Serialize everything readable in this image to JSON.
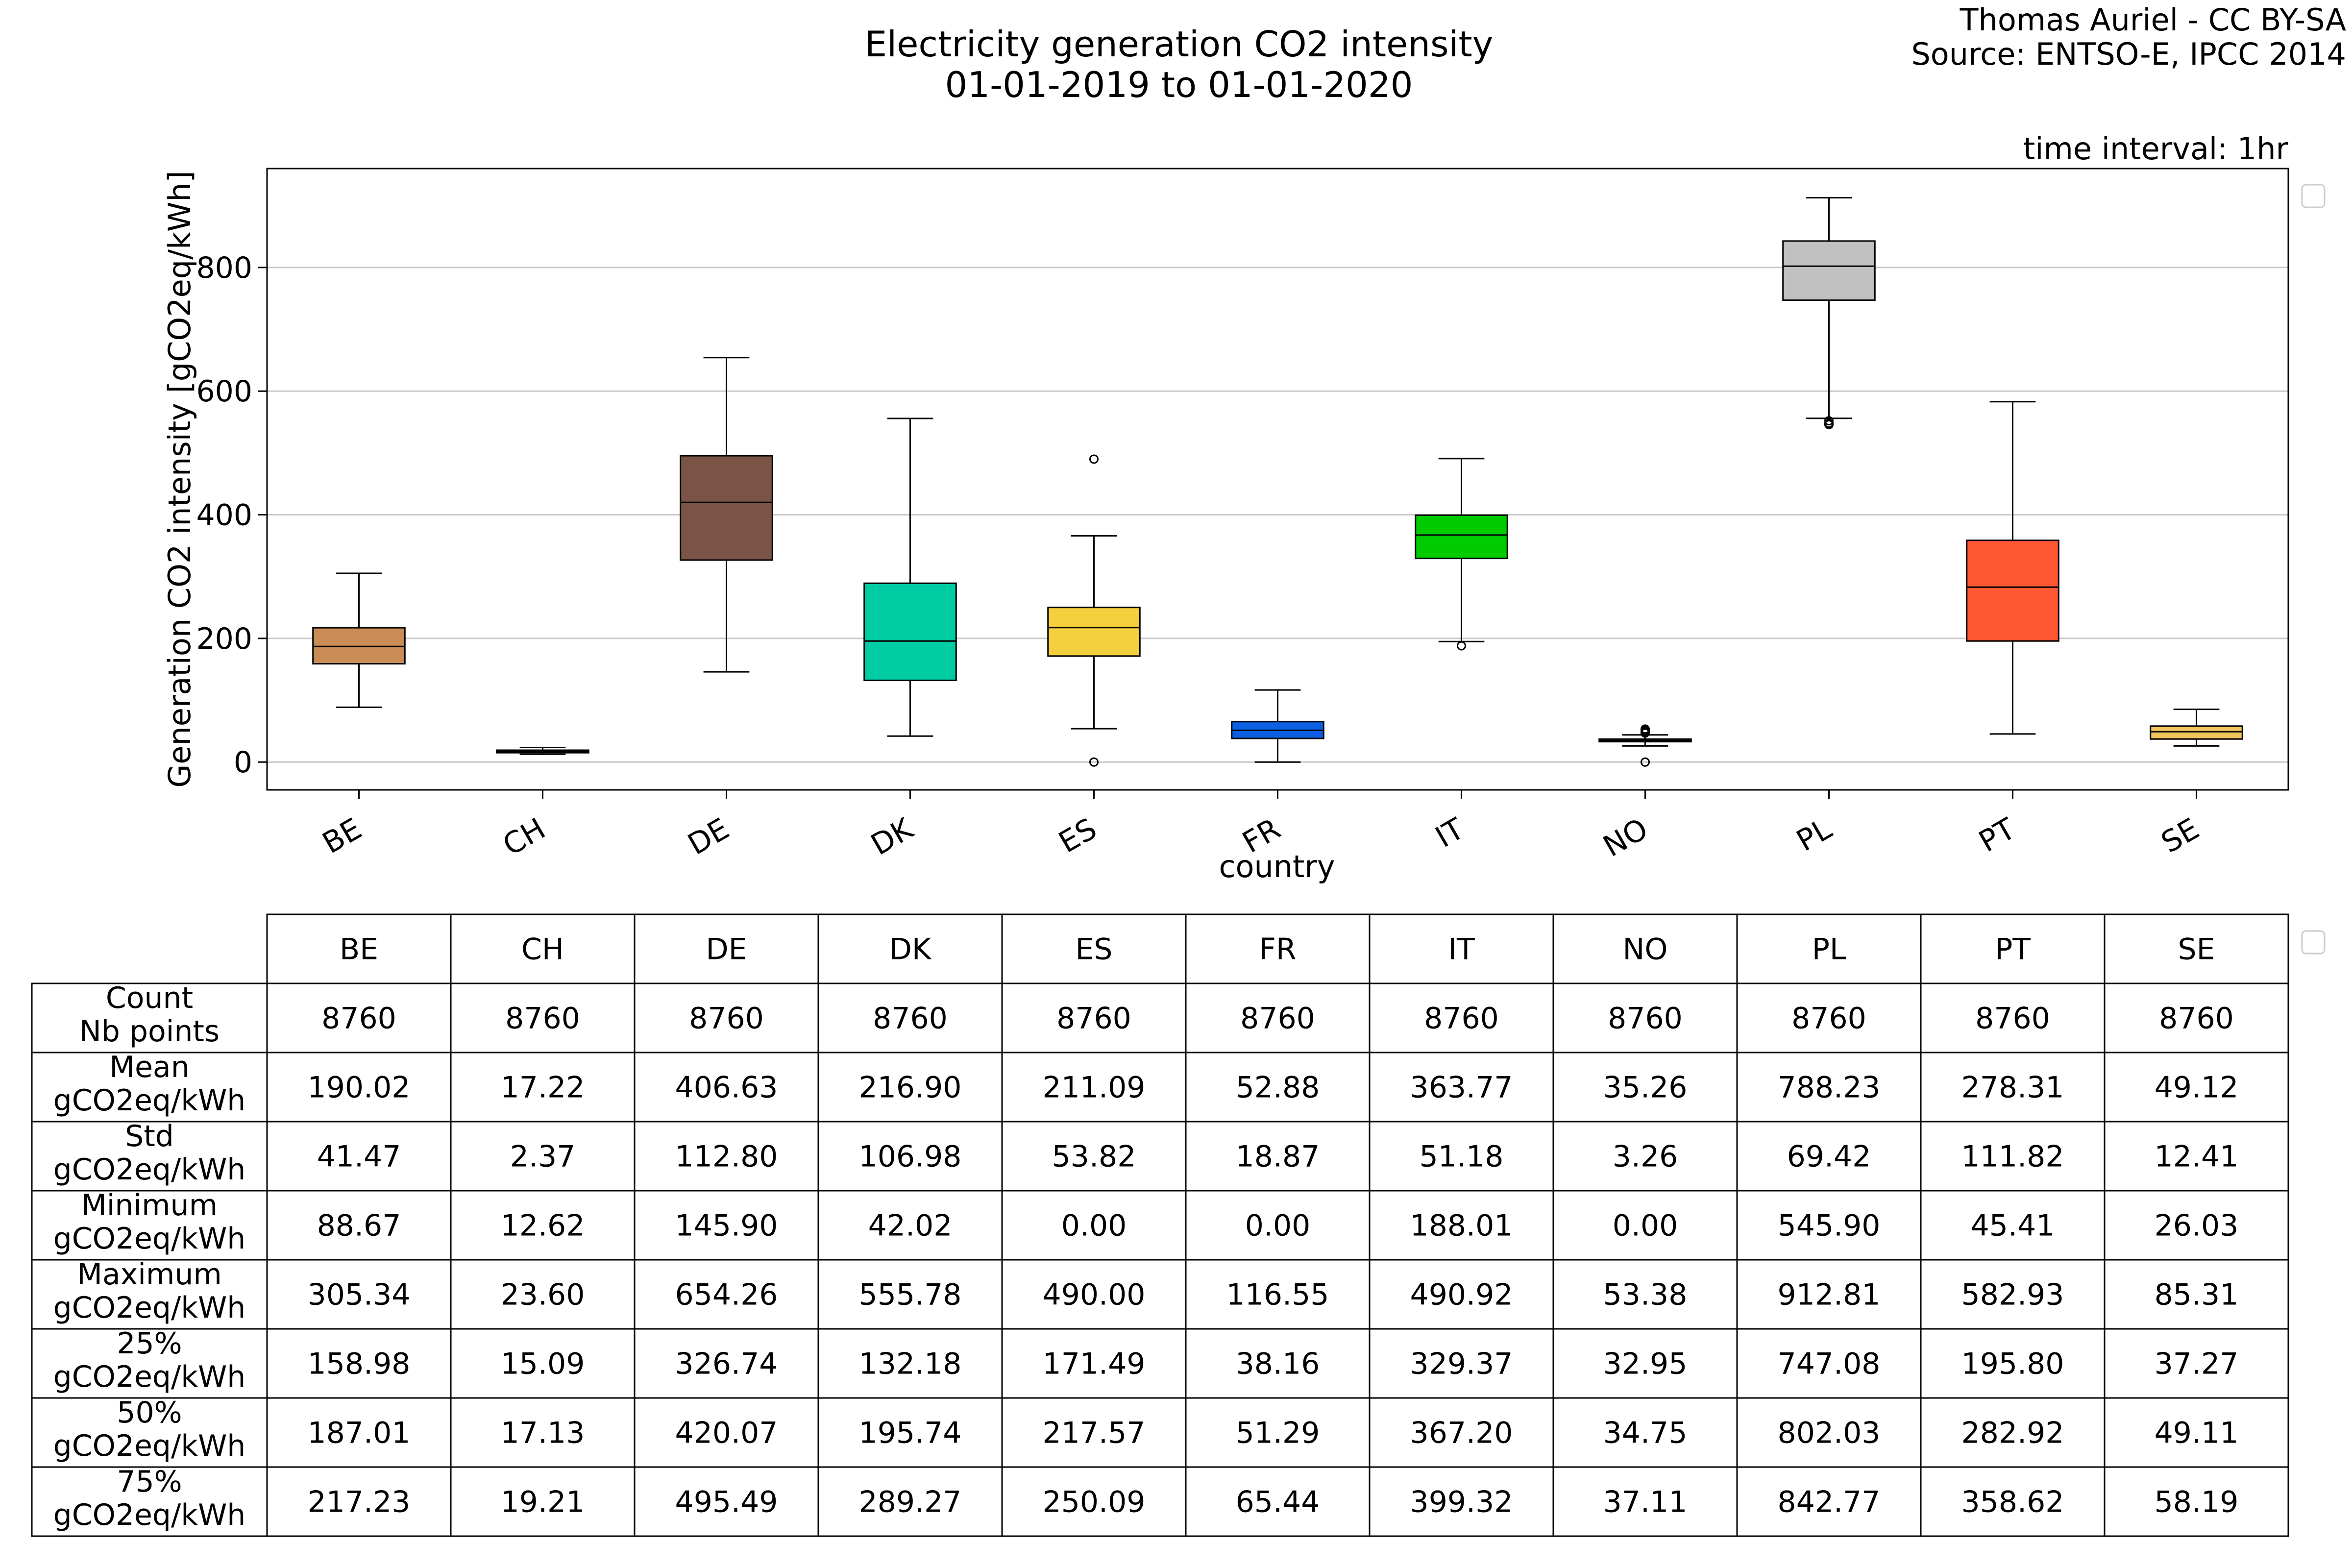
{
  "header": {
    "title_line1": "Electricity generation CO2 intensity",
    "title_line2": "01-01-2019 to 01-01-2020",
    "credit_line1": "Thomas Auriel - CC BY-SA",
    "credit_line2": "Source: ENTSO-E, IPCC 2014",
    "time_interval": "time interval: 1hr"
  },
  "chart_data": {
    "type": "box",
    "title": "Electricity generation CO2 intensity",
    "subtitle": "01-01-2019 to 01-01-2020",
    "xlabel": "country",
    "ylabel": "Generation CO2 intensity [gCO2eq/kWh]",
    "ylim": [
      -45,
      960
    ],
    "yticks": [
      0,
      200,
      400,
      600,
      800
    ],
    "grid": "horizontal",
    "categories": [
      "BE",
      "CH",
      "DE",
      "DK",
      "ES",
      "FR",
      "IT",
      "NO",
      "PL",
      "PT",
      "SE"
    ],
    "boxes": [
      {
        "category": "BE",
        "color": "#c98c54",
        "whisker_low": 88.67,
        "q1": 158.98,
        "median": 187.01,
        "q3": 217.23,
        "whisker_high": 305.34,
        "outliers": []
      },
      {
        "category": "CH",
        "color": "#9e9e9e",
        "whisker_low": 12.62,
        "q1": 15.09,
        "median": 17.13,
        "q3": 19.21,
        "whisker_high": 23.6,
        "outliers": []
      },
      {
        "category": "DE",
        "color": "#7a5547",
        "whisker_low": 145.9,
        "q1": 326.74,
        "median": 420.07,
        "q3": 495.49,
        "whisker_high": 654.26,
        "outliers": []
      },
      {
        "category": "DK",
        "color": "#00cca3",
        "whisker_low": 42.02,
        "q1": 132.18,
        "median": 195.74,
        "q3": 289.27,
        "whisker_high": 555.78,
        "outliers": []
      },
      {
        "category": "ES",
        "color": "#f4d03f",
        "whisker_low": 54,
        "q1": 171.49,
        "median": 217.57,
        "q3": 250.09,
        "whisker_high": 366,
        "outliers": [
          0.0,
          490.0
        ]
      },
      {
        "category": "FR",
        "color": "#0b5fe0",
        "whisker_low": 0.0,
        "q1": 38.16,
        "median": 51.29,
        "q3": 65.44,
        "whisker_high": 116.55,
        "outliers": []
      },
      {
        "category": "IT",
        "color": "#00cc00",
        "whisker_low": 195,
        "q1": 329.37,
        "median": 367.2,
        "q3": 399.32,
        "whisker_high": 490.92,
        "outliers": [
          188.01
        ]
      },
      {
        "category": "NO",
        "color": "#1f5fbf",
        "whisker_low": 26,
        "q1": 32.95,
        "median": 34.75,
        "q3": 37.11,
        "whisker_high": 44,
        "outliers": [
          0.0,
          47,
          49,
          51,
          53.38
        ]
      },
      {
        "category": "PL",
        "color": "#c0c0c0",
        "whisker_low": 556,
        "q1": 747.08,
        "median": 802.03,
        "q3": 842.77,
        "whisker_high": 912.81,
        "outliers": [
          545.9,
          548,
          552
        ]
      },
      {
        "category": "PT",
        "color": "#ff5733",
        "whisker_low": 45.41,
        "q1": 195.8,
        "median": 282.92,
        "q3": 358.62,
        "whisker_high": 582.93,
        "outliers": []
      },
      {
        "category": "SE",
        "color": "#f2c55c",
        "whisker_low": 26.03,
        "q1": 37.27,
        "median": 49.11,
        "q3": 58.19,
        "whisker_high": 85.31,
        "outliers": []
      }
    ]
  },
  "stats_table": {
    "columns": [
      "BE",
      "CH",
      "DE",
      "DK",
      "ES",
      "FR",
      "IT",
      "NO",
      "PL",
      "PT",
      "SE"
    ],
    "rows": [
      {
        "label_line1": "Count",
        "label_line2": "Nb points",
        "values": [
          "8760",
          "8760",
          "8760",
          "8760",
          "8760",
          "8760",
          "8760",
          "8760",
          "8760",
          "8760",
          "8760"
        ]
      },
      {
        "label_line1": "Mean",
        "label_line2": "gCO2eq/kWh",
        "values": [
          "190.02",
          "17.22",
          "406.63",
          "216.90",
          "211.09",
          "52.88",
          "363.77",
          "35.26",
          "788.23",
          "278.31",
          "49.12"
        ]
      },
      {
        "label_line1": "Std",
        "label_line2": "gCO2eq/kWh",
        "values": [
          "41.47",
          "2.37",
          "112.80",
          "106.98",
          "53.82",
          "18.87",
          "51.18",
          "3.26",
          "69.42",
          "111.82",
          "12.41"
        ]
      },
      {
        "label_line1": "Minimum",
        "label_line2": "gCO2eq/kWh",
        "values": [
          "88.67",
          "12.62",
          "145.90",
          "42.02",
          "0.00",
          "0.00",
          "188.01",
          "0.00",
          "545.90",
          "45.41",
          "26.03"
        ]
      },
      {
        "label_line1": "Maximum",
        "label_line2": "gCO2eq/kWh",
        "values": [
          "305.34",
          "23.60",
          "654.26",
          "555.78",
          "490.00",
          "116.55",
          "490.92",
          "53.38",
          "912.81",
          "582.93",
          "85.31"
        ]
      },
      {
        "label_line1": "25%",
        "label_line2": "gCO2eq/kWh",
        "values": [
          "158.98",
          "15.09",
          "326.74",
          "132.18",
          "171.49",
          "38.16",
          "329.37",
          "32.95",
          "747.08",
          "195.80",
          "37.27"
        ]
      },
      {
        "label_line1": "50%",
        "label_line2": "gCO2eq/kWh",
        "values": [
          "187.01",
          "17.13",
          "420.07",
          "195.74",
          "217.57",
          "51.29",
          "367.20",
          "34.75",
          "802.03",
          "282.92",
          "49.11"
        ]
      },
      {
        "label_line1": "75%",
        "label_line2": "gCO2eq/kWh",
        "values": [
          "217.23",
          "19.21",
          "495.49",
          "289.27",
          "250.09",
          "65.44",
          "399.32",
          "37.11",
          "842.77",
          "358.62",
          "58.19"
        ]
      }
    ]
  }
}
